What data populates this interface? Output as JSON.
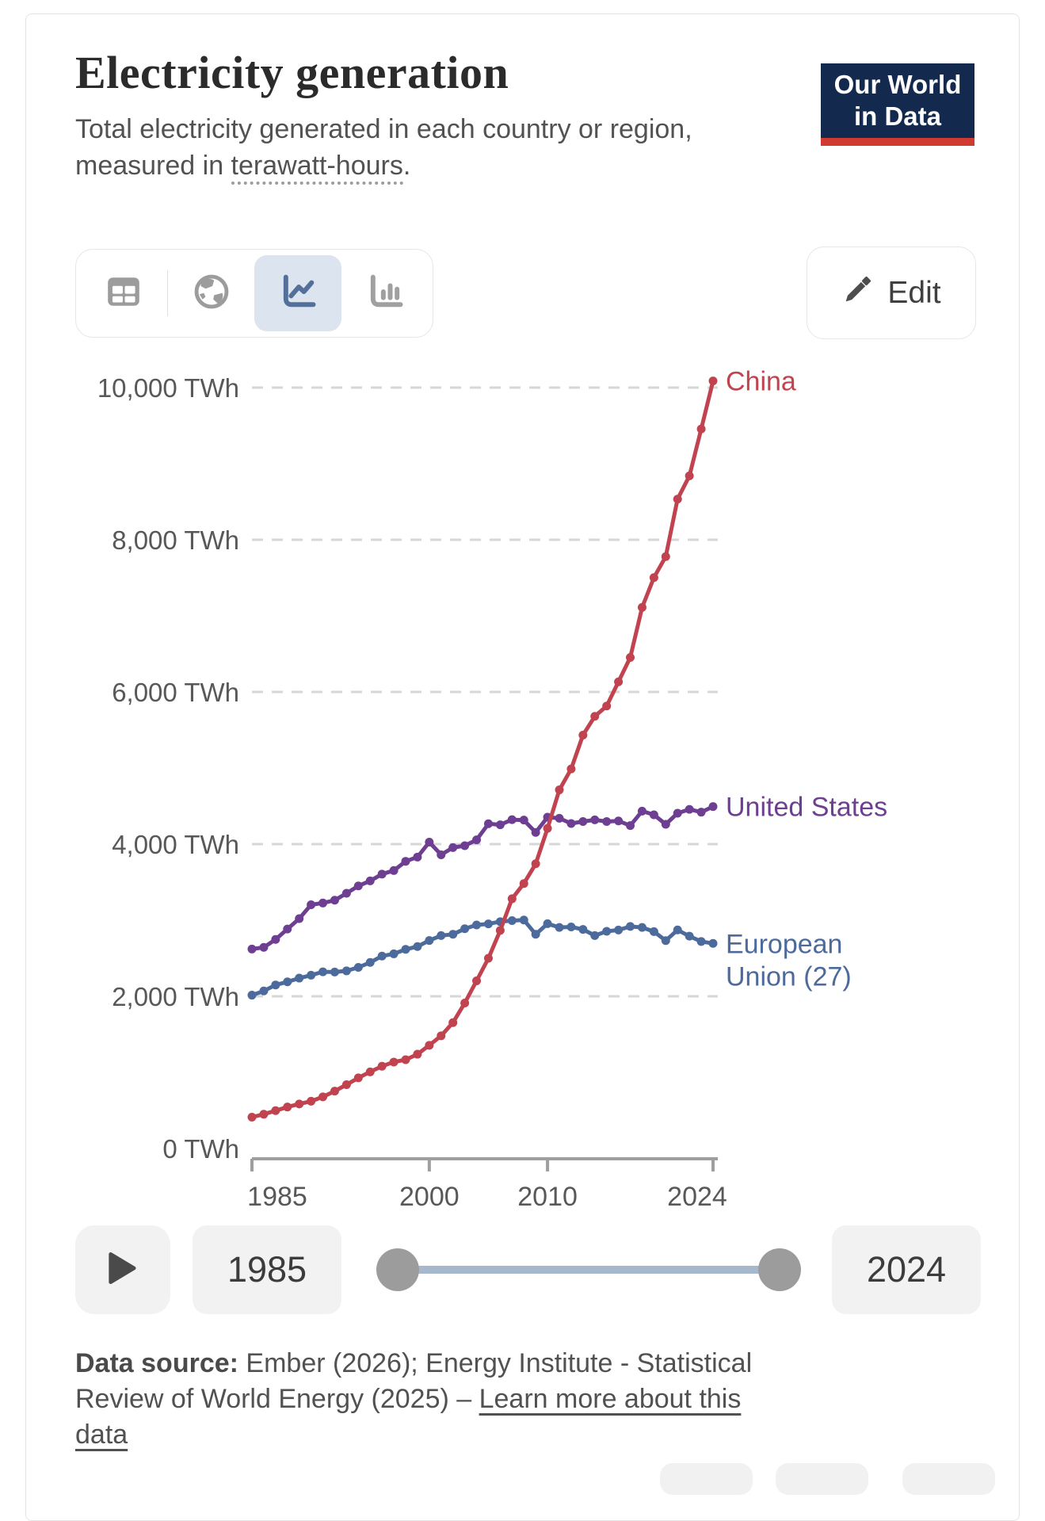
{
  "header": {
    "title": "Electricity generation",
    "subtitle_prefix": "Total electricity generated in each country or region, measured in ",
    "subtitle_underlined": "terawatt-hours",
    "subtitle_suffix": ".",
    "logo_line1": "Our World",
    "logo_line2": "in Data",
    "logo_bg": "#14294e",
    "logo_accent": "#cf3b31"
  },
  "toolbar": {
    "views": [
      "table",
      "map",
      "line-chart",
      "bar-chart"
    ],
    "selected_view": "line-chart",
    "edit_label": "Edit"
  },
  "chart_data": {
    "type": "line",
    "title": "Electricity generation",
    "unit": "TWh",
    "xlim": [
      1985,
      2024
    ],
    "ylim": [
      0,
      10000
    ],
    "grid": "horizontal-dashed",
    "legend_position": "right-of-line-end",
    "years": [
      1985,
      1986,
      1987,
      1988,
      1989,
      1990,
      1991,
      1992,
      1993,
      1994,
      1995,
      1996,
      1997,
      1998,
      1999,
      2000,
      2001,
      2002,
      2003,
      2004,
      2005,
      2006,
      2007,
      2008,
      2009,
      2010,
      2011,
      2012,
      2013,
      2014,
      2015,
      2016,
      2017,
      2018,
      2019,
      2020,
      2021,
      2022,
      2023,
      2024
    ],
    "y_ticks": [
      {
        "value": 0,
        "label": "0 TWh"
      },
      {
        "value": 2000,
        "label": "2,000 TWh"
      },
      {
        "value": 4000,
        "label": "4,000 TWh"
      },
      {
        "value": 6000,
        "label": "6,000 TWh"
      },
      {
        "value": 8000,
        "label": "8,000 TWh"
      },
      {
        "value": 10000,
        "label": "10,000 TWh"
      }
    ],
    "x_ticks": [
      {
        "year": 1985,
        "label": "1985"
      },
      {
        "year": 2000,
        "label": "2000"
      },
      {
        "year": 2010,
        "label": "2010"
      },
      {
        "year": 2024,
        "label": "2024"
      }
    ],
    "series": [
      {
        "name": "china",
        "label_lines": [
          "China"
        ],
        "color": "#C0434F",
        "values": [
          411,
          450,
          497,
          545,
          585,
          621,
          678,
          754,
          839,
          928,
          1007,
          1081,
          1136,
          1167,
          1239,
          1356,
          1481,
          1654,
          1911,
          2203,
          2500,
          2866,
          3282,
          3482,
          3742,
          4207,
          4713,
          4988,
          5432,
          5680,
          5815,
          6133,
          6453,
          7111,
          7503,
          7779,
          8534,
          8840,
          9456,
          10087
        ]
      },
      {
        "name": "united-states",
        "label_lines": [
          "United States"
        ],
        "color": "#6D3E91",
        "values": [
          2621,
          2643,
          2747,
          2884,
          3021,
          3203,
          3226,
          3263,
          3354,
          3451,
          3517,
          3606,
          3653,
          3774,
          3830,
          4026,
          3860,
          3954,
          3979,
          4056,
          4268,
          4254,
          4322,
          4316,
          4154,
          4354,
          4340,
          4271,
          4297,
          4319,
          4297,
          4305,
          4243,
          4434,
          4385,
          4260,
          4406,
          4457,
          4420,
          4494
        ]
      },
      {
        "name": "european-union-27",
        "label_lines": [
          "European",
          "Union (27)"
        ],
        "color": "#4C6A9C",
        "values": [
          2015,
          2070,
          2149,
          2190,
          2239,
          2277,
          2322,
          2319,
          2334,
          2380,
          2445,
          2529,
          2558,
          2617,
          2654,
          2733,
          2798,
          2815,
          2888,
          2938,
          2952,
          2981,
          2995,
          3003,
          2815,
          2954,
          2905,
          2911,
          2879,
          2798,
          2854,
          2871,
          2918,
          2905,
          2850,
          2732,
          2872,
          2790,
          2720,
          2695
        ]
      }
    ],
    "colors": {
      "gridline": "#d7d7d7",
      "axis": "#9e9e9e",
      "tick_text": "#585858"
    }
  },
  "timeline": {
    "start_year": "1985",
    "end_year": "2024"
  },
  "footer": {
    "source_label": "Data source:",
    "source_text": " Ember (2026); Energy Institute - Statistical Review of World Energy (2025) – ",
    "link_text": "Learn more about this data"
  }
}
